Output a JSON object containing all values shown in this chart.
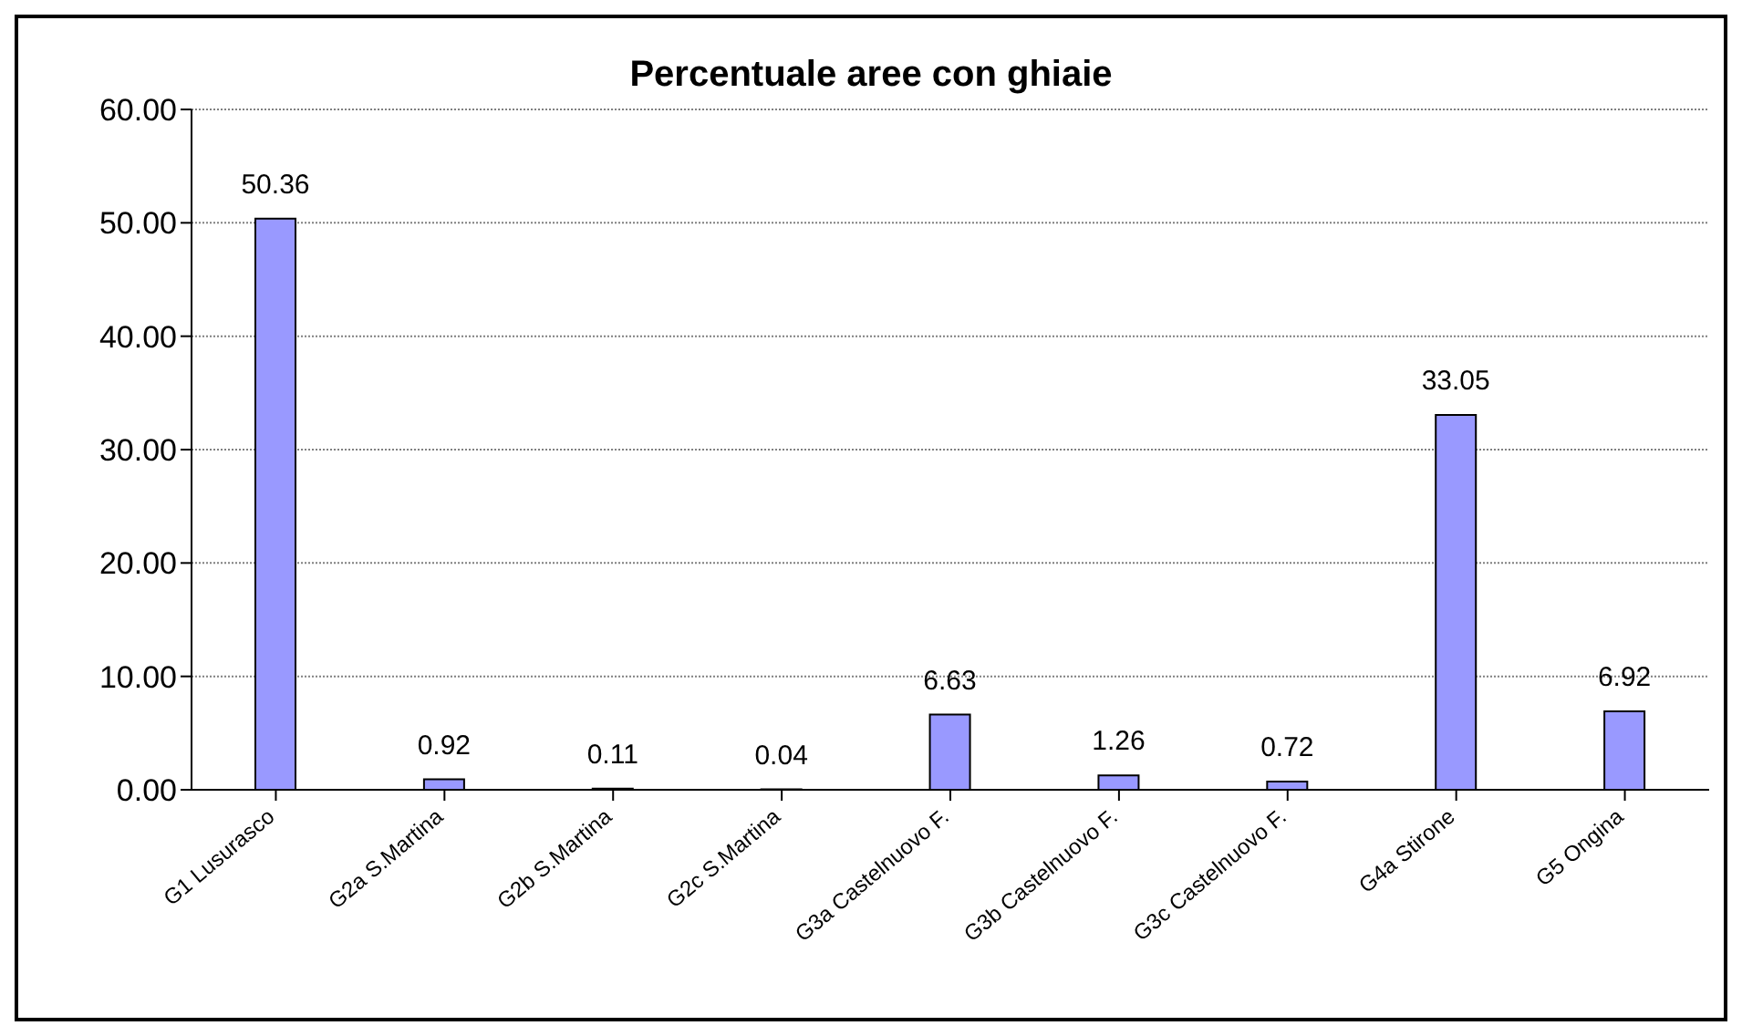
{
  "chart_data": {
    "type": "bar",
    "title": "Percentuale aree con ghiaie",
    "categories": [
      "G1 Lusurasco",
      "G2a S.Martina",
      "G2b  S.Martina",
      "G2c  S.Martina",
      "G3a Castelnuovo F.",
      "G3b Castelnuovo F.",
      "G3c Castelnuovo F.",
      "G4a Stirone",
      "G5 Ongina"
    ],
    "values": [
      50.36,
      0.92,
      0.11,
      0.04,
      6.63,
      1.26,
      0.72,
      33.05,
      6.92
    ],
    "color": "#9999ff",
    "data_labels": true,
    "ylim": [
      0,
      60
    ],
    "yticks": [
      {
        "value": 0,
        "label": "0.00"
      },
      {
        "value": 10,
        "label": "10.00"
      },
      {
        "value": 20,
        "label": "20.00"
      },
      {
        "value": 30,
        "label": "30.00"
      },
      {
        "value": 40,
        "label": "40.00"
      },
      {
        "value": 50,
        "label": "50.00"
      },
      {
        "value": 60,
        "label": "60.00"
      }
    ],
    "grid": "y",
    "legend": false
  }
}
